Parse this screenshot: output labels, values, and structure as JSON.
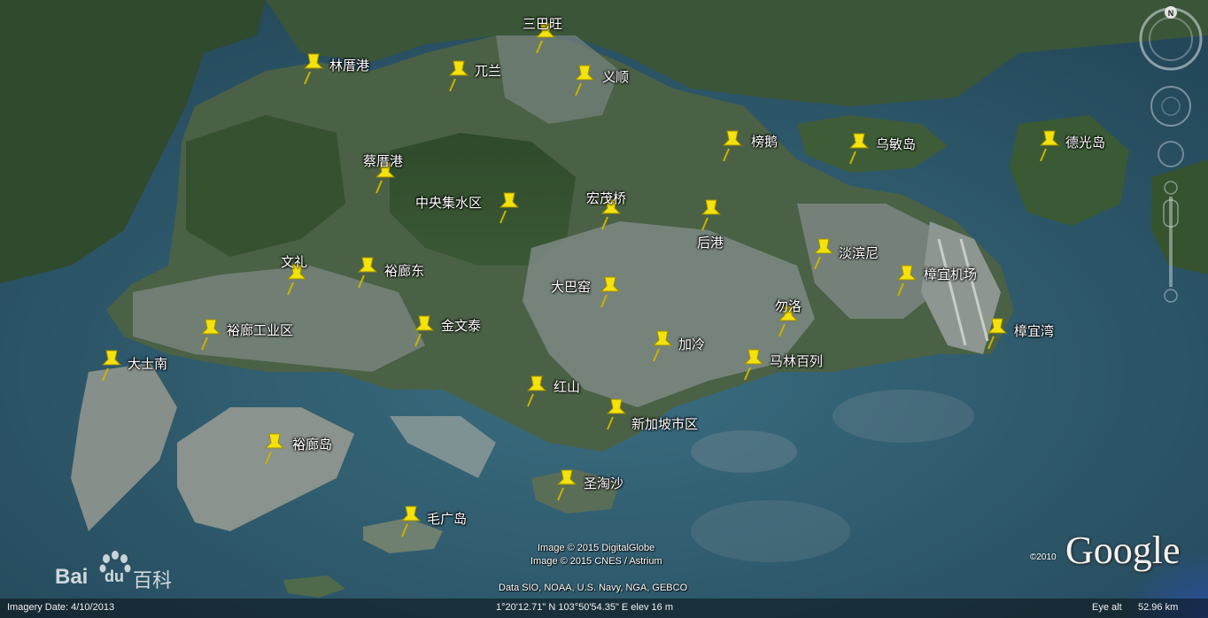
{
  "map": {
    "places": [
      {
        "id": "sanbawang",
        "label": "三巴旺"
      },
      {
        "id": "linlanggang",
        "label": "林厝港"
      },
      {
        "id": "wulan",
        "label": "兀兰"
      },
      {
        "id": "yishun",
        "label": "义顺"
      },
      {
        "id": "bangpeng",
        "label": "榜鹅"
      },
      {
        "id": "wumindao",
        "label": "乌敏岛"
      },
      {
        "id": "deguangdao",
        "label": "德光岛"
      },
      {
        "id": "caicuogang",
        "label": "蔡厝港"
      },
      {
        "id": "zhongyangjishuiqu",
        "label": "中央集水区"
      },
      {
        "id": "hongmaoqiao",
        "label": "宏茂桥"
      },
      {
        "id": "hougang",
        "label": "后港"
      },
      {
        "id": "danbinni",
        "label": "淡滨尼"
      },
      {
        "id": "zhangyijichang",
        "label": "樟宜机场"
      },
      {
        "id": "wenli",
        "label": "文礼"
      },
      {
        "id": "yulangdong",
        "label": "裕廊东"
      },
      {
        "id": "dabayao",
        "label": "大巴窑"
      },
      {
        "id": "wuluo",
        "label": "勿洛"
      },
      {
        "id": "zhangyiwan",
        "label": "樟宜湾"
      },
      {
        "id": "yulanggongyequ",
        "label": "裕廊工业区"
      },
      {
        "id": "jinwentai",
        "label": "金文泰"
      },
      {
        "id": "jialeng",
        "label": "加冷"
      },
      {
        "id": "malinbailie",
        "label": "马林百列"
      },
      {
        "id": "dashinan",
        "label": "大士南"
      },
      {
        "id": "hongshan",
        "label": "红山"
      },
      {
        "id": "xinjiaposhiqu",
        "label": "新加坡市区"
      },
      {
        "id": "yulangdao",
        "label": "裕廊岛"
      },
      {
        "id": "shengtaosha",
        "label": "圣淘沙"
      },
      {
        "id": "maoguangdao",
        "label": "毛广岛"
      }
    ]
  },
  "credits": {
    "line1": "Image © 2015 DigitalGlobe",
    "line2": "Image © 2015 CNES / Astrium",
    "line3": "Data SIO, NOAA, U.S. Navy, NGA, GEBCO",
    "google_copyright": "©2010",
    "google_logo": "Google"
  },
  "statusbar": {
    "imagery_date": "Imagery Date: 4/10/2013",
    "coordinates": "1°20'12.71\" N  103°50'54.35\" E  elev   16 m",
    "eye_alt_label": "Eye alt",
    "eye_alt_value": "52.96 km"
  },
  "watermark": {
    "text_bai": "Bai",
    "text_du": "du",
    "text_baike": "百科"
  },
  "compass": {
    "north_label": "N"
  },
  "colors": {
    "pin": "#f4e20c",
    "sea": "#2f5f73",
    "land": "#3d5a3a",
    "urban": "#7d8a84"
  }
}
